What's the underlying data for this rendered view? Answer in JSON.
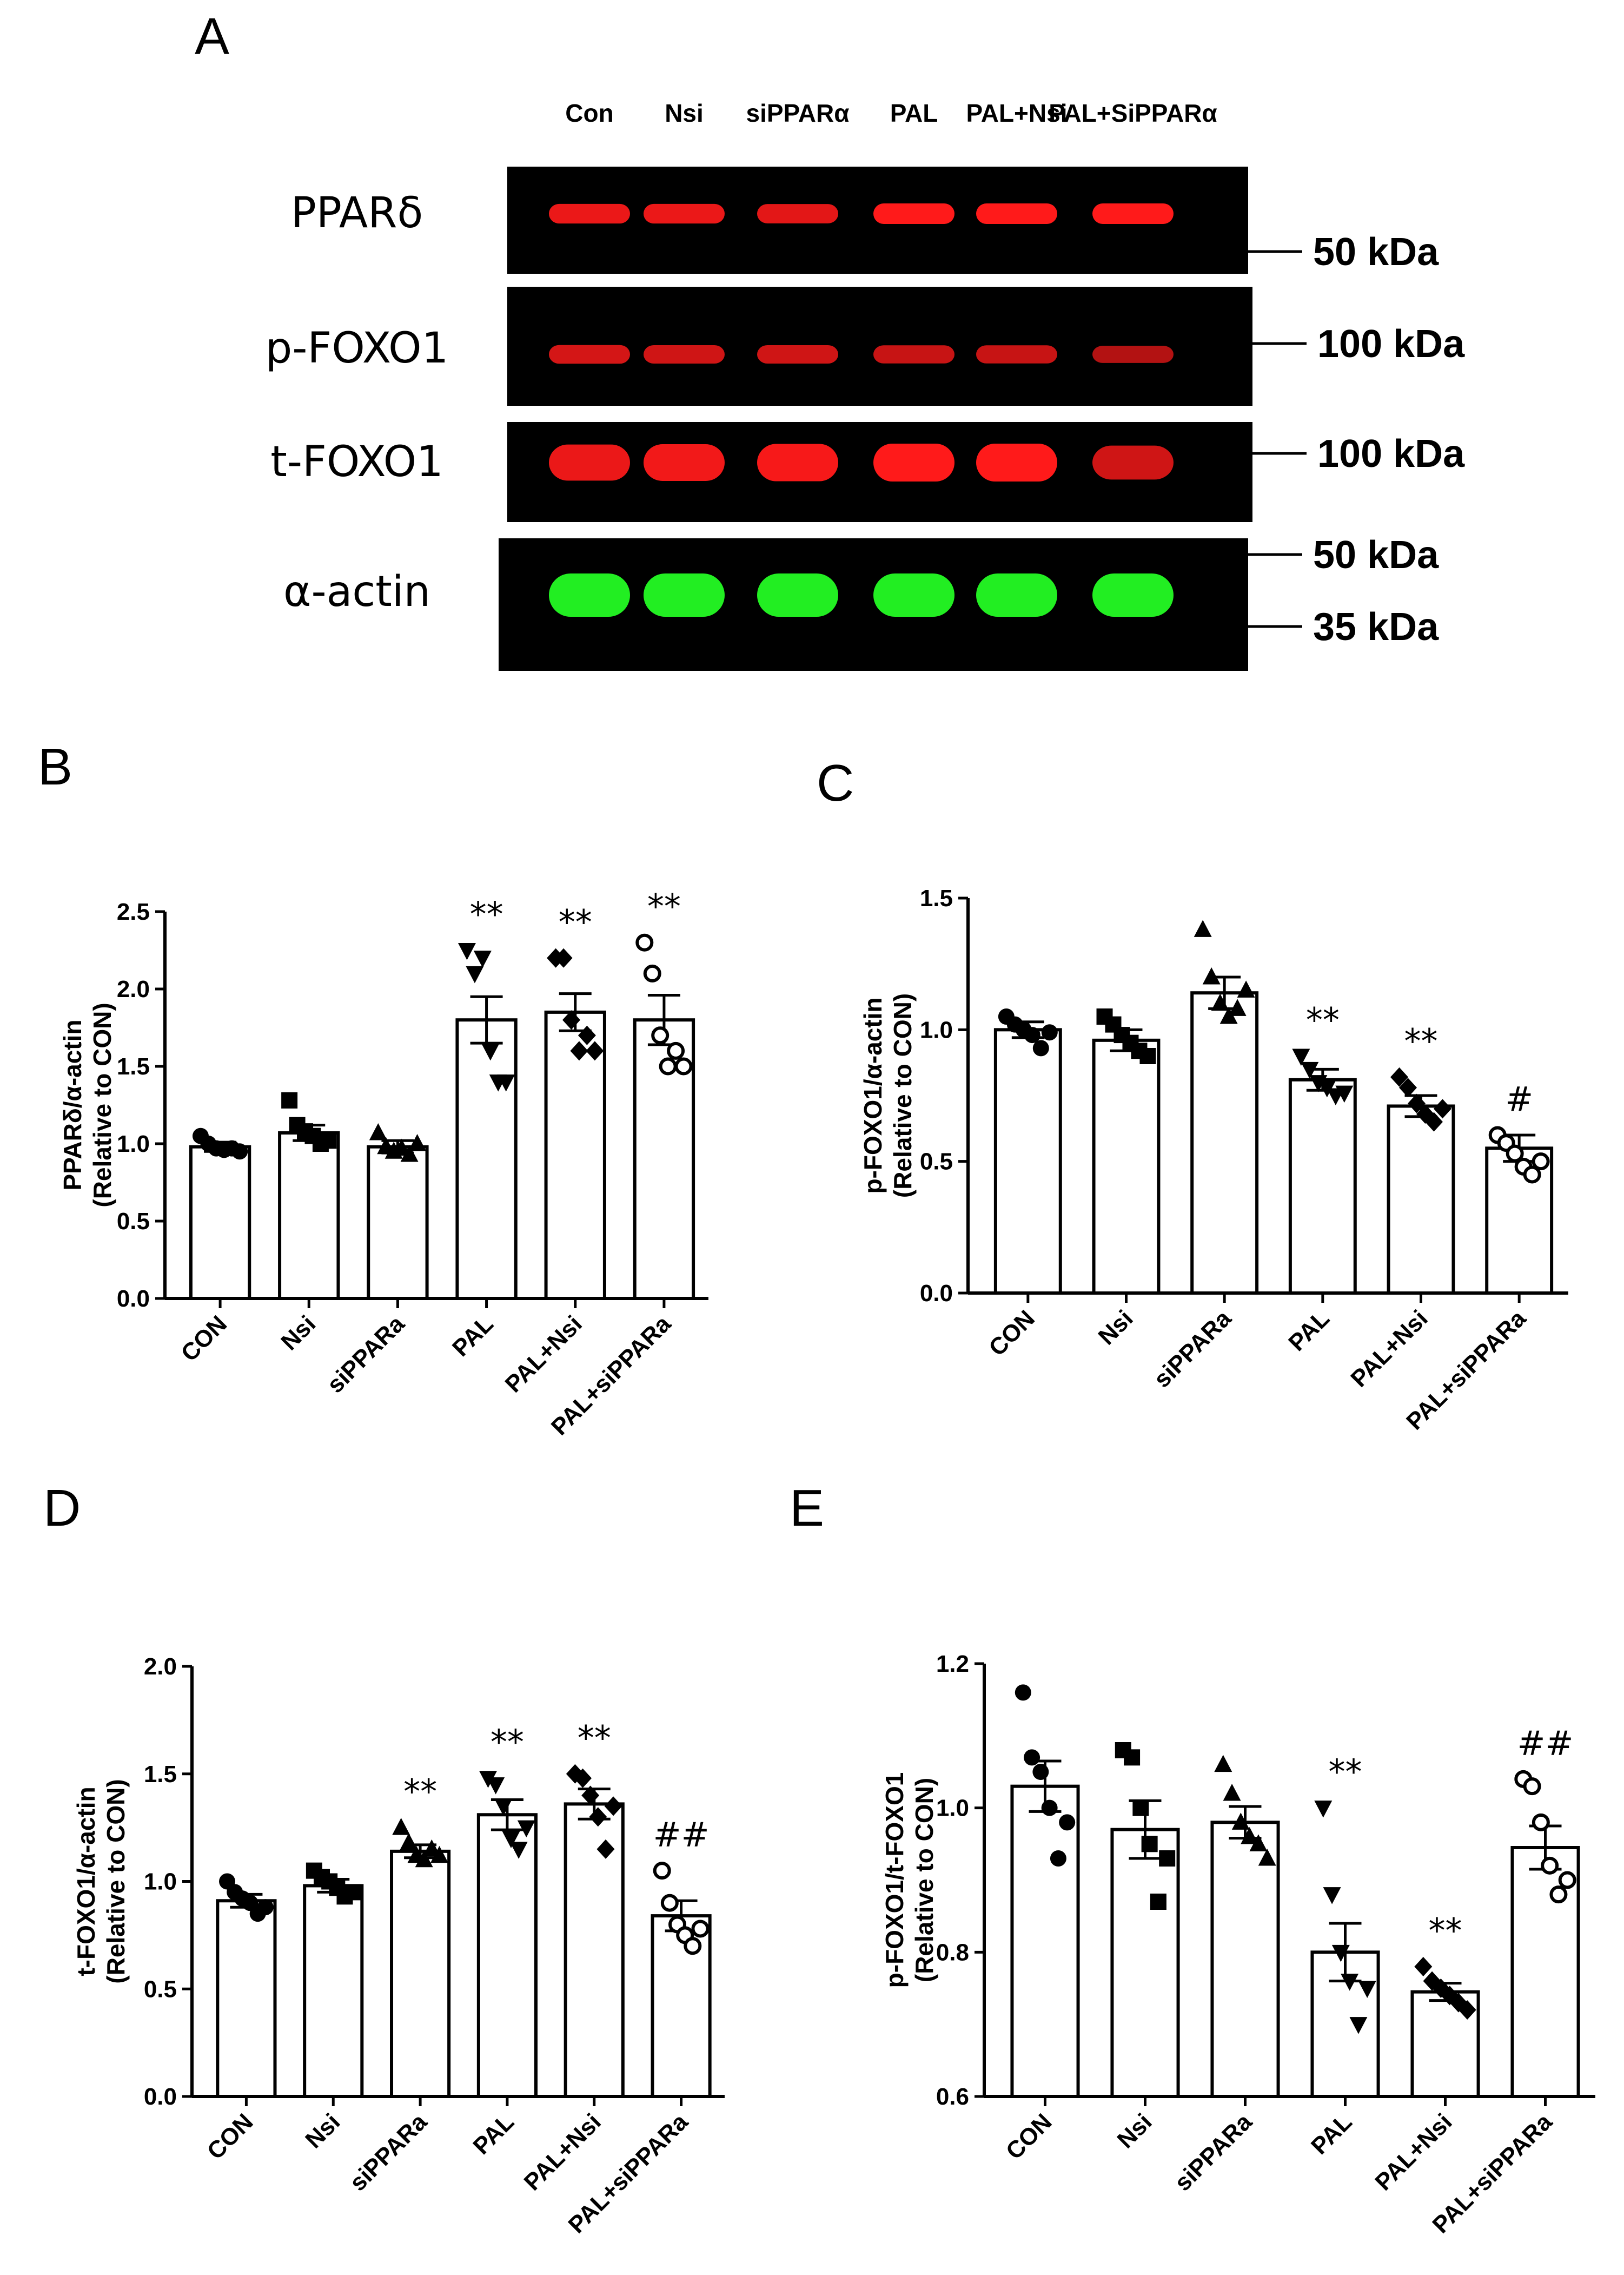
{
  "panel_a": {
    "letter": "A",
    "lanes": [
      "Con",
      "Nsi",
      "siPPARα",
      "PAL",
      "PAL+Nsi",
      "PAL+SiPPARα"
    ],
    "blots": [
      {
        "label": "PPARδ",
        "color": "#ff1a1a",
        "markers": [
          "50 kDa"
        ]
      },
      {
        "label": "p-FOXO1",
        "color": "#ff1a1a",
        "markers": [
          "100 kDa"
        ]
      },
      {
        "label": "t-FOXO1",
        "color": "#ff1a1a",
        "markers": [
          "100 kDa"
        ]
      },
      {
        "label": "α-actin",
        "color": "#22ee22",
        "markers": [
          "50 kDa",
          "35 kDa"
        ]
      }
    ],
    "band_intensity": [
      [
        0.85,
        0.85,
        0.8,
        1.0,
        1.0,
        1.0
      ],
      [
        0.7,
        0.65,
        0.65,
        0.6,
        0.6,
        0.45
      ],
      [
        0.85,
        0.9,
        0.95,
        1.0,
        1.0,
        0.65
      ],
      [
        1.0,
        1.0,
        1.0,
        1.0,
        1.0,
        1.0
      ]
    ]
  },
  "chart_data": [
    {
      "letter": "B",
      "type": "bar",
      "categories": [
        "CON",
        "Nsi",
        "siPPARa",
        "PAL",
        "PAL+Nsi",
        "PAL+siPPARa"
      ],
      "ylabel_line1": "PPARδ/α-actin",
      "ylabel_line2": "(Relative to CON)",
      "ylim": [
        0,
        2.5
      ],
      "yticks": [
        "0.0",
        "0.5",
        "1.0",
        "1.5",
        "2.0",
        "2.5"
      ],
      "values": [
        0.98,
        1.07,
        0.98,
        1.8,
        1.85,
        1.8
      ],
      "sem": [
        0.03,
        0.05,
        0.04,
        0.15,
        0.12,
        0.16
      ],
      "markers": [
        "circle",
        "square",
        "triangle",
        "triangle-down",
        "diamond",
        "circle-open"
      ],
      "points": [
        [
          1.05,
          1.0,
          0.97,
          0.96,
          0.97,
          0.95
        ],
        [
          1.28,
          1.12,
          1.08,
          1.05,
          1.0,
          1.02
        ],
        [
          1.07,
          0.98,
          0.95,
          0.97,
          0.93,
          1.0
        ],
        [
          2.25,
          2.1,
          2.2,
          1.6,
          1.4,
          1.4
        ],
        [
          2.2,
          2.2,
          1.8,
          1.6,
          1.7,
          1.6
        ],
        [
          2.3,
          2.1,
          1.7,
          1.5,
          1.6,
          1.5
        ]
      ],
      "significance": [
        "",
        "",
        "",
        "**",
        "**",
        "**"
      ]
    },
    {
      "letter": "C",
      "type": "bar",
      "categories": [
        "CON",
        "Nsi",
        "siPPARa",
        "PAL",
        "PAL+Nsi",
        "PAL+siPPARa"
      ],
      "ylabel_line1": "p-FOXO1/α-actin",
      "ylabel_line2": "(Relative to CON)",
      "ylim": [
        0,
        1.5
      ],
      "yticks": [
        "0.0",
        "0.5",
        "1.0",
        "1.5"
      ],
      "values": [
        1.0,
        0.96,
        1.14,
        0.81,
        0.71,
        0.55
      ],
      "sem": [
        0.03,
        0.04,
        0.06,
        0.04,
        0.04,
        0.05
      ],
      "markers": [
        "circle",
        "square",
        "triangle",
        "triangle-down",
        "diamond",
        "circle-open"
      ],
      "points": [
        [
          1.05,
          1.02,
          1.0,
          0.98,
          0.93,
          0.99
        ],
        [
          1.05,
          1.02,
          0.98,
          0.95,
          0.92,
          0.9
        ],
        [
          1.38,
          1.2,
          1.1,
          1.05,
          1.08,
          1.15
        ],
        [
          0.9,
          0.85,
          0.8,
          0.78,
          0.75,
          0.76
        ],
        [
          0.82,
          0.78,
          0.72,
          0.68,
          0.65,
          0.7
        ],
        [
          0.6,
          0.57,
          0.53,
          0.48,
          0.45,
          0.5
        ]
      ],
      "significance": [
        "",
        "",
        "",
        "**",
        "**",
        "#"
      ]
    },
    {
      "letter": "D",
      "type": "bar",
      "categories": [
        "CON",
        "Nsi",
        "siPPARa",
        "PAL",
        "PAL+Nsi",
        "PAL+siPPARa"
      ],
      "ylabel_line1": "t-FOXO1/α-actin",
      "ylabel_line2": "(Relative to CON)",
      "ylim": [
        0,
        2.0
      ],
      "yticks": [
        "0.0",
        "0.5",
        "1.0",
        "1.5",
        "2.0"
      ],
      "values": [
        0.91,
        0.98,
        1.14,
        1.31,
        1.36,
        0.84
      ],
      "sem": [
        0.03,
        0.03,
        0.03,
        0.07,
        0.07,
        0.07
      ],
      "markers": [
        "circle",
        "square",
        "triangle",
        "triangle-down",
        "diamond",
        "circle-open"
      ],
      "points": [
        [
          1.0,
          0.95,
          0.92,
          0.9,
          0.85,
          0.88
        ],
        [
          1.05,
          1.02,
          1.0,
          0.97,
          0.93,
          0.95
        ],
        [
          1.25,
          1.18,
          1.12,
          1.1,
          1.15,
          1.12
        ],
        [
          1.48,
          1.45,
          1.35,
          1.2,
          1.15,
          1.25
        ],
        [
          1.5,
          1.48,
          1.4,
          1.3,
          1.15,
          1.35
        ],
        [
          1.05,
          0.9,
          0.8,
          0.75,
          0.7,
          0.78
        ]
      ],
      "significance": [
        "",
        "",
        "**",
        "**",
        "**",
        "##"
      ]
    },
    {
      "letter": "E",
      "type": "bar",
      "categories": [
        "CON",
        "Nsi",
        "siPPARa",
        "PAL",
        "PAL+Nsi",
        "PAL+siPPARa"
      ],
      "ylabel_line1": "p-FOXO1/t-FOXO1",
      "ylabel_line2": "(Relative to CON)",
      "ylim": [
        0.6,
        1.2
      ],
      "yticks": [
        "0.6",
        "0.8",
        "1.0",
        "1.2"
      ],
      "values": [
        1.03,
        0.97,
        0.98,
        0.8,
        0.745,
        0.945
      ],
      "sem": [
        0.035,
        0.04,
        0.022,
        0.04,
        0.012,
        0.03
      ],
      "markers": [
        "circle",
        "square",
        "triangle",
        "triangle-down",
        "diamond",
        "circle-open"
      ],
      "points": [
        [
          1.16,
          1.07,
          1.05,
          1.0,
          0.93,
          0.98
        ],
        [
          1.08,
          1.07,
          1.0,
          0.95,
          0.87,
          0.93
        ],
        [
          1.06,
          1.02,
          0.98,
          0.96,
          0.95,
          0.93
        ],
        [
          1.0,
          0.88,
          0.8,
          0.76,
          0.7,
          0.75
        ],
        [
          0.78,
          0.76,
          0.75,
          0.74,
          0.73,
          0.72
        ],
        [
          1.04,
          1.03,
          0.98,
          0.92,
          0.88,
          0.9
        ]
      ],
      "significance": [
        "",
        "",
        "",
        "**",
        "**",
        "##"
      ]
    }
  ]
}
